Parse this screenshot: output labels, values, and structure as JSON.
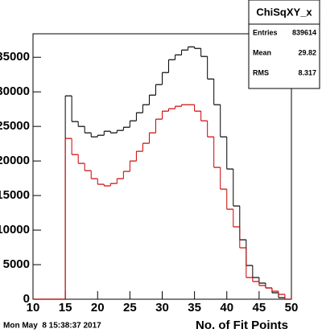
{
  "chart_data": {
    "type": "histogram",
    "x_label": "No. of Fit Points",
    "timestamp": "Mon May  8 15:38:37 2017",
    "bins": [
      10,
      11,
      12,
      13,
      14,
      15,
      16,
      17,
      18,
      19,
      20,
      21,
      22,
      23,
      24,
      25,
      26,
      27,
      28,
      29,
      30,
      31,
      32,
      33,
      34,
      35,
      36,
      37,
      38,
      39,
      40,
      41,
      42,
      43,
      44,
      45,
      46,
      47,
      48,
      49,
      50
    ],
    "series": [
      {
        "color": "#000000",
        "values": [
          0,
          0,
          0,
          0,
          0,
          29420,
          25700,
          25000,
          24070,
          23490,
          23720,
          24300,
          24070,
          24420,
          24880,
          25810,
          26980,
          28140,
          29530,
          31050,
          32790,
          34650,
          35350,
          36050,
          36510,
          36280,
          35120,
          31860,
          28140,
          23490,
          18840,
          13490,
          8600,
          4880,
          3140,
          2330,
          1630,
          930,
          230,
          0
        ]
      },
      {
        "color": "#cc0000",
        "values": [
          0,
          0,
          0,
          0,
          0,
          23260,
          20930,
          19650,
          18600,
          17440,
          16630,
          16400,
          16740,
          17440,
          18490,
          20000,
          21400,
          22560,
          24070,
          26050,
          27210,
          27560,
          27910,
          28140,
          28140,
          27210,
          25810,
          23490,
          19070,
          15930,
          13020,
          10470,
          7440,
          3140,
          2560,
          1980,
          1630,
          1160,
          700,
          0
        ]
      }
    ],
    "xlim": [
      10,
      50
    ],
    "xticks": [
      10,
      15,
      20,
      25,
      30,
      35,
      40,
      45,
      50
    ],
    "ylim": [
      0,
      38400
    ],
    "yticks": [
      0,
      5000,
      10000,
      15000,
      20000,
      25000,
      30000,
      35000
    ],
    "stats_box": {
      "title": "ChiSqXY_x",
      "rows": [
        {
          "label": "Entries",
          "value": 839614
        },
        {
          "label": "Mean",
          "value": 29.82
        },
        {
          "label": "RMS",
          "value": 8.317
        }
      ]
    }
  }
}
